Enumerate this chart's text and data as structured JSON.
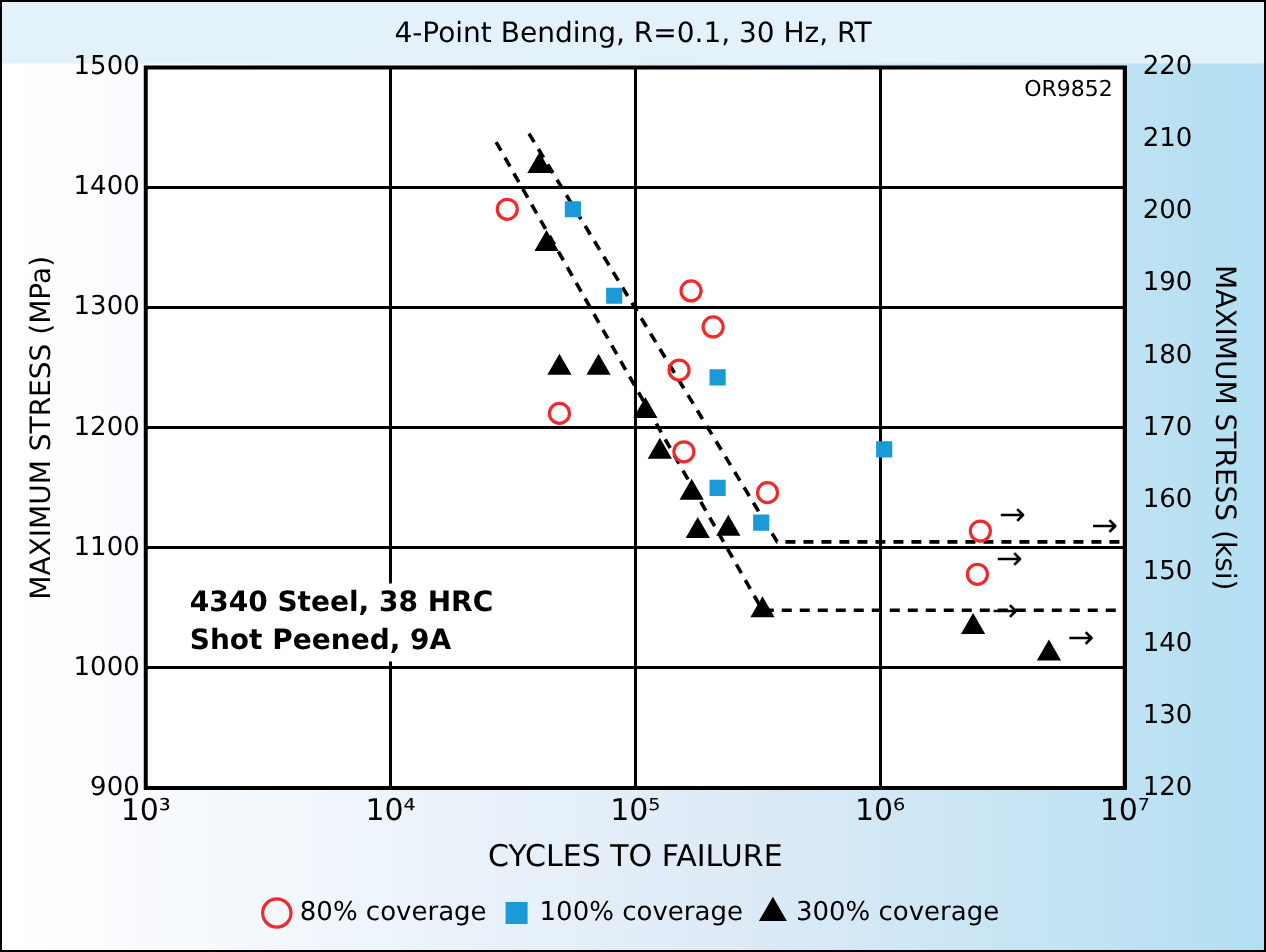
{
  "chart_data": {
    "type": "scatter",
    "title": "4-Point Bending, R=0.1, 30 Hz, RT",
    "xlabel": "CYCLES TO FAILURE",
    "ylabel": "MAXIMUM STRESS (MPa)",
    "y2label": "MAXIMUM STRESS (ksi)",
    "log": "x",
    "grid": true,
    "legend": "bottom",
    "xlim": [
      1000,
      10000000
    ],
    "xticks": [
      {
        "value": 1000,
        "label": "10³"
      },
      {
        "value": 10000,
        "label": "10⁴"
      },
      {
        "value": 100000,
        "label": "10⁵"
      },
      {
        "value": 1000000,
        "label": "10⁶"
      },
      {
        "value": 10000000,
        "label": "10⁷"
      }
    ],
    "ylim": [
      900,
      1500
    ],
    "yticks": [
      900,
      1000,
      1100,
      1200,
      1300,
      1400,
      1500
    ],
    "y2lim": [
      120,
      220
    ],
    "y2ticks": [
      120,
      130,
      140,
      150,
      160,
      170,
      180,
      190,
      200,
      210,
      220
    ],
    "series": [
      {
        "name": "80% coverage",
        "color": "#ee2a2a",
        "marker": "circle",
        "x": [
          30000,
          169000,
          208000,
          151000,
          49000,
          158000,
          347000,
          2570000,
          2500000
        ],
        "values": [
          1382,
          1314,
          1284,
          1248,
          1212,
          1180,
          1146,
          1114,
          1078
        ]
      },
      {
        "name": "100% coverage",
        "color": "#1a9ad6",
        "marker": "square",
        "x": [
          55600,
          82000,
          217000,
          217000,
          327000,
          1040000
        ],
        "values": [
          1382,
          1310,
          1242,
          1150,
          1121,
          1182
        ]
      },
      {
        "name": "300% coverage",
        "color": "#000000",
        "marker": "triangle",
        "x": [
          40600,
          43400,
          49000,
          70800,
          110000,
          126000,
          170000,
          180000,
          240000,
          331000,
          2400000,
          4900000
        ],
        "values": [
          1418,
          1353,
          1250,
          1250,
          1214,
          1180,
          1146,
          1114,
          1116,
          1048,
          1034,
          1012
        ]
      },
      {
        "type": "line",
        "color": "#000000",
        "line_style": "dashed",
        "marker": "none",
        "x": [
          27000,
          331000,
          10000000
        ],
        "values": [
          1438,
          1048,
          1048
        ]
      },
      {
        "type": "line",
        "color": "#000000",
        "line_style": "dashed",
        "marker": "none",
        "x": [
          36800,
          380000,
          10000000
        ],
        "values": [
          1445,
          1105,
          1105
        ]
      }
    ],
    "annotations": [
      "OR9852",
      "4340 Steel, 38 HRC",
      "Shot Peened, 9A",
      {
        "text": "→",
        "x": 2570000,
        "y": 1114
      },
      {
        "text": "→",
        "x": 2500000,
        "y": 1078
      },
      {
        "text": "→",
        "x": 2400000,
        "y": 1034
      },
      {
        "text": "→",
        "x": 4900000,
        "y": 1012
      },
      {
        "text": "→",
        "x": 10000000,
        "y": 1105
      }
    ]
  }
}
